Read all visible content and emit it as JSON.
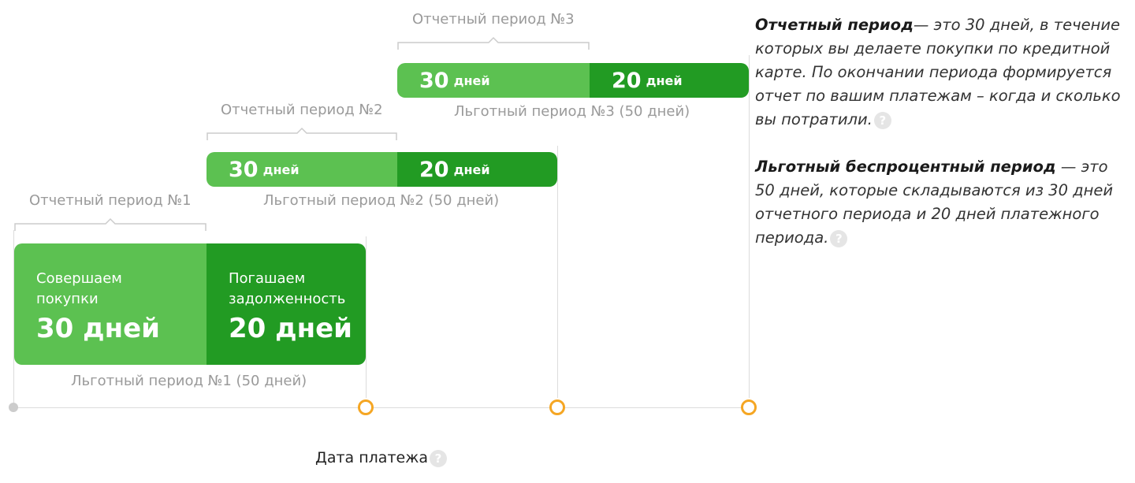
{
  "periods": [
    {
      "report_label": "Отчетный период №1",
      "report_num": "30",
      "report_unit": "дней",
      "pay_num": "20",
      "pay_unit": "дней",
      "report_caption": "Совершаем покупки",
      "pay_caption": "Погашаем задолженность",
      "grace_label": "Льготный период №1 (50 дней)"
    },
    {
      "report_label": "Отчетный период №2",
      "report_num": "30",
      "report_unit": "дней",
      "pay_num": "20",
      "pay_unit": "дней",
      "grace_label": "Льготный период №2 (50 дней)"
    },
    {
      "report_label": "Отчетный период №3",
      "report_num": "30",
      "report_unit": "дней",
      "pay_num": "20",
      "pay_unit": "дней",
      "grace_label": "Льготный период №3 (50 дней)"
    }
  ],
  "payment_date_label": "Дата платежа",
  "help_mark": "?",
  "definitions": [
    {
      "term": "Отчетный период",
      "text": "— это 30 дней, в течение которых вы делаете покупки по кредитной карте. По окончании периода формируется отчет по вашим платежам – когда и сколько вы потратили."
    },
    {
      "term": "Льготный беспроцентный период",
      "text": " — это 50 дней, которые складываются из 30 дней отчетного периода и 20 дней платежного периода."
    }
  ],
  "colors": {
    "report_bar": "#5cc151",
    "pay_bar": "#229b23",
    "payment_marker": "#f5a623",
    "muted_text": "#9a9a9a"
  }
}
